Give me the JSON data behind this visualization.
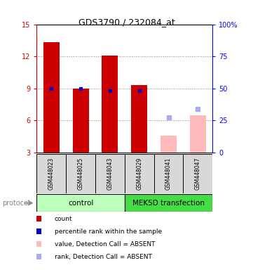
{
  "title": "GDS3790 / 232084_at",
  "samples": [
    "GSM448023",
    "GSM448025",
    "GSM448043",
    "GSM448029",
    "GSM448041",
    "GSM448047"
  ],
  "control_group": {
    "name": "control",
    "indices": [
      0,
      1,
      2
    ],
    "color": "#bbffbb"
  },
  "mek_group": {
    "name": "MEK5D transfection",
    "indices": [
      3,
      4,
      5
    ],
    "color": "#44dd44"
  },
  "red_bar_values": [
    13.3,
    9.0,
    12.1,
    9.3,
    null,
    null
  ],
  "pink_bar_values": [
    null,
    null,
    null,
    null,
    4.6,
    6.5
  ],
  "blue_square_values": [
    9.0,
    9.0,
    8.8,
    8.8,
    null,
    null
  ],
  "lightblue_square_values": [
    null,
    null,
    null,
    null,
    6.3,
    7.1
  ],
  "ylim_left": [
    3,
    15
  ],
  "ylim_right": [
    0,
    100
  ],
  "yticks_left": [
    3,
    6,
    9,
    12,
    15
  ],
  "yticks_right": [
    0,
    25,
    50,
    75,
    100
  ],
  "ylabel_right_labels": [
    "0",
    "25",
    "50",
    "75",
    "100%"
  ],
  "red_color": "#cc0000",
  "pink_color": "#ffbbbb",
  "blue_color": "#0000cc",
  "lightblue_color": "#aaaaee",
  "bar_width": 0.55,
  "legend": [
    {
      "label": "count",
      "color": "#cc0000"
    },
    {
      "label": "percentile rank within the sample",
      "color": "#0000cc"
    },
    {
      "label": "value, Detection Call = ABSENT",
      "color": "#ffbbbb"
    },
    {
      "label": "rank, Detection Call = ABSENT",
      "color": "#aaaaee"
    }
  ],
  "grid_color": "#888888"
}
